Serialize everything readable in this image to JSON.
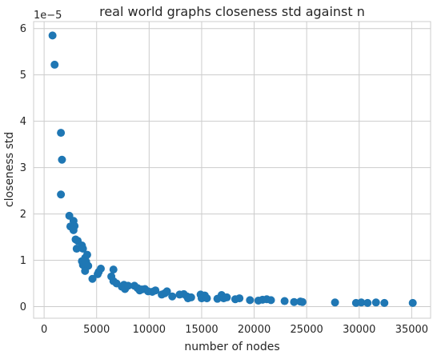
{
  "chart_data": {
    "type": "scatter",
    "title": "real world graphs closeness std against n",
    "xlabel": "number of nodes",
    "ylabel": "closeness std",
    "y_offset_text": "1e−5",
    "xlim": [
      -1000,
      36800
    ],
    "ylim": [
      -0.25,
      6.15
    ],
    "x_ticks": [
      0,
      5000,
      10000,
      15000,
      20000,
      25000,
      30000,
      35000
    ],
    "x_tick_labels": [
      "0",
      "5000",
      "10000",
      "15000",
      "20000",
      "25000",
      "30000",
      "35000"
    ],
    "y_ticks": [
      0,
      1,
      2,
      3,
      4,
      5,
      6
    ],
    "y_tick_labels": [
      "0",
      "1",
      "2",
      "3",
      "4",
      "5",
      "6"
    ],
    "grid": true,
    "point_color": "#1f77b4",
    "series": [
      {
        "points": [
          [
            800,
            5.85
          ],
          [
            1000,
            5.22
          ],
          [
            1600,
            3.75
          ],
          [
            1700,
            3.17
          ],
          [
            1600,
            2.42
          ],
          [
            2400,
            1.96
          ],
          [
            2500,
            1.73
          ],
          [
            2800,
            1.85
          ],
          [
            2900,
            1.74
          ],
          [
            2800,
            1.65
          ],
          [
            3000,
            1.45
          ],
          [
            3200,
            1.42
          ],
          [
            3100,
            1.25
          ],
          [
            3600,
            1.32
          ],
          [
            3700,
            1.25
          ],
          [
            3600,
            0.98
          ],
          [
            3700,
            0.9
          ],
          [
            3900,
            1.05
          ],
          [
            4000,
            0.97
          ],
          [
            4100,
            1.12
          ],
          [
            4200,
            0.88
          ],
          [
            3900,
            0.77
          ],
          [
            4600,
            0.6
          ],
          [
            5100,
            0.7
          ],
          [
            5200,
            0.75
          ],
          [
            5400,
            0.82
          ],
          [
            6400,
            0.65
          ],
          [
            6600,
            0.8
          ],
          [
            6600,
            0.55
          ],
          [
            6900,
            0.5
          ],
          [
            7400,
            0.43
          ],
          [
            7600,
            0.47
          ],
          [
            7700,
            0.38
          ],
          [
            8000,
            0.45
          ],
          [
            8600,
            0.45
          ],
          [
            8900,
            0.4
          ],
          [
            9100,
            0.35
          ],
          [
            9300,
            0.37
          ],
          [
            9600,
            0.38
          ],
          [
            9900,
            0.33
          ],
          [
            10300,
            0.32
          ],
          [
            10600,
            0.35
          ],
          [
            11200,
            0.26
          ],
          [
            11500,
            0.29
          ],
          [
            11700,
            0.33
          ],
          [
            12200,
            0.22
          ],
          [
            12900,
            0.26
          ],
          [
            13300,
            0.27
          ],
          [
            13600,
            0.22
          ],
          [
            13700,
            0.18
          ],
          [
            14000,
            0.2
          ],
          [
            14900,
            0.26
          ],
          [
            15000,
            0.18
          ],
          [
            15300,
            0.24
          ],
          [
            15500,
            0.18
          ],
          [
            16500,
            0.17
          ],
          [
            16900,
            0.25
          ],
          [
            17100,
            0.18
          ],
          [
            17400,
            0.2
          ],
          [
            18200,
            0.16
          ],
          [
            18600,
            0.18
          ],
          [
            19600,
            0.14
          ],
          [
            20400,
            0.13
          ],
          [
            20800,
            0.15
          ],
          [
            21200,
            0.16
          ],
          [
            21600,
            0.14
          ],
          [
            22900,
            0.12
          ],
          [
            23800,
            0.1
          ],
          [
            24400,
            0.11
          ],
          [
            24600,
            0.1
          ],
          [
            27700,
            0.09
          ],
          [
            29700,
            0.08
          ],
          [
            30200,
            0.09
          ],
          [
            30800,
            0.08
          ],
          [
            31600,
            0.09
          ],
          [
            32400,
            0.08
          ],
          [
            35100,
            0.08
          ]
        ]
      }
    ]
  }
}
